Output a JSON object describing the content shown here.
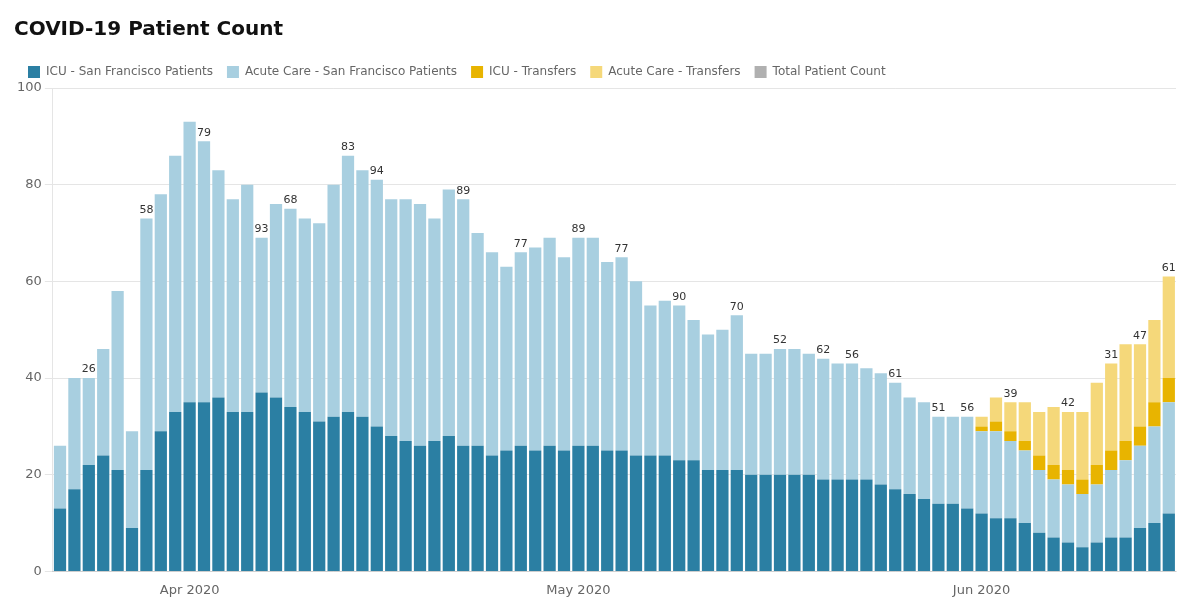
{
  "chart_data": {
    "type": "bar",
    "stacked": true,
    "title": "COVID-19 Patient Count",
    "categories": [
      null,
      null,
      null,
      null,
      null,
      null,
      null,
      null,
      null,
      "Apr 2020",
      null,
      null,
      null,
      null,
      null,
      null,
      null,
      null,
      null,
      null,
      null,
      null,
      null,
      null,
      null,
      null,
      null,
      null,
      null,
      null,
      null,
      null,
      null,
      null,
      null,
      null,
      "May 2020",
      null,
      null,
      null,
      null,
      null,
      null,
      null,
      null,
      null,
      null,
      null,
      null,
      null,
      null,
      null,
      null,
      null,
      null,
      null,
      null,
      null,
      null,
      null,
      null,
      null,
      null,
      null,
      "Jun 2020",
      null,
      null,
      null,
      null,
      null,
      null,
      null,
      null,
      null,
      null,
      null,
      null,
      null
    ],
    "series": [
      {
        "name": "ICU - San Francisco Patients",
        "color": "#2b7fa3",
        "values": [
          13,
          17,
          22,
          24,
          21,
          9,
          21,
          29,
          33,
          35,
          35,
          36,
          33,
          33,
          37,
          36,
          34,
          33,
          31,
          32,
          33,
          32,
          30,
          28,
          27,
          26,
          27,
          28,
          26,
          26,
          24,
          25,
          26,
          25,
          26,
          25,
          26,
          26,
          25,
          25,
          24,
          24,
          24,
          23,
          23,
          21,
          21,
          21,
          20,
          20,
          20,
          20,
          20,
          19,
          19,
          19,
          19,
          18,
          17,
          16,
          15,
          14,
          14,
          13,
          12,
          11,
          11,
          10,
          8,
          7,
          6,
          5,
          6,
          7,
          7,
          9,
          10,
          12
        ]
      },
      {
        "name": "Acute Care - San Francisco Patients",
        "color": "#a8cfe0",
        "values": [
          13,
          23,
          18,
          22,
          37,
          20,
          52,
          49,
          53,
          58,
          54,
          47,
          44,
          47,
          32,
          40,
          41,
          40,
          41,
          48,
          53,
          51,
          51,
          49,
          50,
          50,
          46,
          51,
          51,
          44,
          42,
          38,
          40,
          42,
          43,
          40,
          43,
          43,
          39,
          40,
          36,
          31,
          32,
          32,
          29,
          28,
          29,
          32,
          25,
          25,
          26,
          26,
          25,
          25,
          24,
          24,
          23,
          23,
          22,
          20,
          20,
          18,
          18,
          19,
          17,
          18,
          16,
          15,
          13,
          12,
          12,
          11,
          12,
          14,
          16,
          17,
          20,
          23
        ]
      },
      {
        "name": "ICU - Transfers",
        "color": "#e8b400",
        "values": [
          0,
          0,
          0,
          0,
          0,
          0,
          0,
          0,
          0,
          0,
          0,
          0,
          0,
          0,
          0,
          0,
          0,
          0,
          0,
          0,
          0,
          0,
          0,
          0,
          0,
          0,
          0,
          0,
          0,
          0,
          0,
          0,
          0,
          0,
          0,
          0,
          0,
          0,
          0,
          0,
          0,
          0,
          0,
          0,
          0,
          0,
          0,
          0,
          0,
          0,
          0,
          0,
          0,
          0,
          0,
          0,
          0,
          0,
          0,
          0,
          0,
          0,
          0,
          0,
          1,
          2,
          2,
          2,
          3,
          3,
          3,
          3,
          4,
          4,
          4,
          4,
          5,
          5
        ]
      },
      {
        "name": "Acute Care - Transfers",
        "color": "#f5d87a",
        "values": [
          0,
          0,
          0,
          0,
          0,
          0,
          0,
          0,
          0,
          0,
          0,
          0,
          0,
          0,
          0,
          0,
          0,
          0,
          0,
          0,
          0,
          0,
          0,
          0,
          0,
          0,
          0,
          0,
          0,
          0,
          0,
          0,
          0,
          0,
          0,
          0,
          0,
          0,
          0,
          0,
          0,
          0,
          0,
          0,
          0,
          0,
          0,
          0,
          0,
          0,
          0,
          0,
          0,
          0,
          0,
          0,
          0,
          0,
          0,
          0,
          0,
          0,
          0,
          0,
          2,
          5,
          6,
          8,
          9,
          12,
          12,
          14,
          17,
          18,
          20,
          17,
          17,
          21
        ]
      },
      {
        "name": "Total Patient Count",
        "color": "#b0b0b0",
        "values": [
          null,
          null,
          null,
          null,
          null,
          null,
          null,
          null,
          null,
          null,
          null,
          null,
          null,
          null,
          null,
          null,
          null,
          null,
          null,
          null,
          null,
          null,
          null,
          null,
          null,
          null,
          null,
          null,
          null,
          null,
          null,
          null,
          null,
          null,
          null,
          null,
          null,
          null,
          null,
          null,
          null,
          null,
          null,
          null,
          null,
          null,
          null,
          null,
          null,
          null,
          null,
          null,
          null,
          null,
          null,
          null,
          null,
          null,
          null,
          null,
          null,
          null,
          null,
          null,
          null,
          null,
          null,
          null,
          null,
          null,
          null,
          null,
          null,
          null,
          null,
          null,
          null,
          null
        ]
      }
    ],
    "annotations": [
      {
        "index": 2,
        "label": "26"
      },
      {
        "index": 6,
        "label": "58"
      },
      {
        "index": 10,
        "label": "79"
      },
      {
        "index": 14,
        "label": "93"
      },
      {
        "index": 16,
        "label": "68"
      },
      {
        "index": 20,
        "label": "83"
      },
      {
        "index": 22,
        "label": "94"
      },
      {
        "index": 28,
        "label": "89"
      },
      {
        "index": 32,
        "label": "77"
      },
      {
        "index": 36,
        "label": "89"
      },
      {
        "index": 39,
        "label": "77"
      },
      {
        "index": 43,
        "label": "90"
      },
      {
        "index": 47,
        "label": "70"
      },
      {
        "index": 50,
        "label": "52"
      },
      {
        "index": 53,
        "label": "62"
      },
      {
        "index": 55,
        "label": "56"
      },
      {
        "index": 58,
        "label": "61"
      },
      {
        "index": 61,
        "label": "51"
      },
      {
        "index": 63,
        "label": "56"
      },
      {
        "index": 66,
        "label": "39"
      },
      {
        "index": 70,
        "label": "42"
      },
      {
        "index": 73,
        "label": "31"
      },
      {
        "index": 75,
        "label": "47"
      },
      {
        "index": 77,
        "label": "61"
      }
    ],
    "ylim": [
      0,
      100
    ],
    "yticks": [
      0,
      20,
      40,
      60,
      80,
      100
    ],
    "grid": true,
    "legend": "top-left"
  }
}
